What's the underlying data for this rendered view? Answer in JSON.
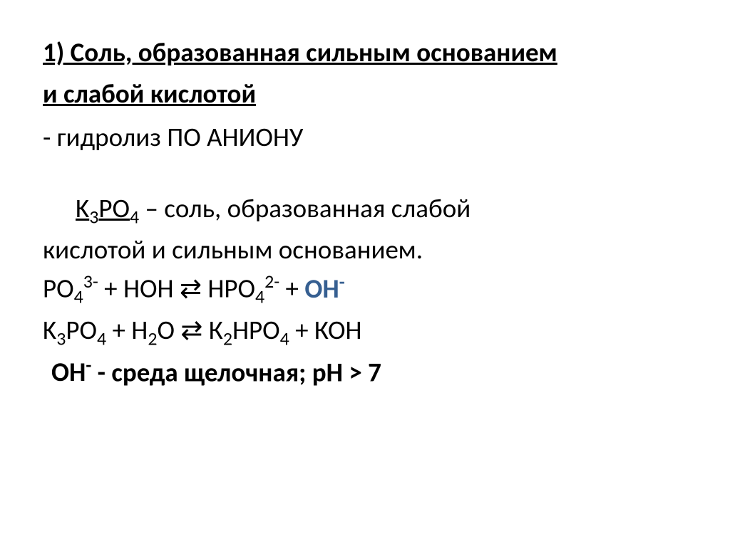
{
  "slide": {
    "heading_line1": "1) Соль, образованная сильным основанием",
    "heading_line2": "и слабой кислотой",
    "hydrolysis_label": "- гидролиз ПО АНИОНУ",
    "formula_k3po4": "K",
    "formula_k3po4_sub": "3",
    "formula_k3po4_p": "PO",
    "formula_k3po4_sub2": "4",
    "salt_desc1": " – соль, образованная слабой",
    "salt_desc2": "кислотой и сильным основанием.",
    "eq1_left1": "PO",
    "eq1_left1_sub": "4",
    "eq1_left1_sup": "3-",
    "eq1_plus1": " + HOH ",
    "eq1_arrow": "⇄",
    "eq1_right1": " HPO",
    "eq1_right1_sub": "4",
    "eq1_right1_sup": "2-",
    "eq1_plus2": " + ",
    "eq1_oh": "OH",
    "eq1_oh_sup": "-",
    "eq2_k3po4": "K",
    "eq2_sub3": "3",
    "eq2_po4": "PO",
    "eq2_sub4": "4",
    "eq2_plus_h2o": " + H",
    "eq2_sub2": "2",
    "eq2_o": "O   ",
    "eq2_arrow": "⇄",
    "eq2_right": " К",
    "eq2_right_sub2": "2",
    "eq2_right_hpo4": "HPO",
    "eq2_right_sub4": "4",
    "eq2_plus_koh": " + КОН",
    "oh_label": "OH",
    "oh_sup": "-",
    "env_text": "  - среда щелочная; рН > 7"
  },
  "style": {
    "background_color": "#ffffff",
    "text_color": "#000000",
    "accent_color": "#365f91",
    "heading_fontsize": 37,
    "body_fontsize": 37,
    "font_family": "Calibri"
  }
}
